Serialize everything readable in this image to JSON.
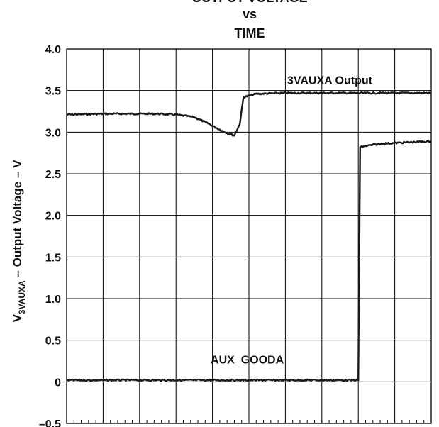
{
  "chart_data": {
    "type": "line",
    "title_lines": [
      "OUTPUT VOLTAGE",
      "vs",
      "TIME"
    ],
    "ylabel": {
      "prefix": "V",
      "subscript": "3VAUXA",
      "suffix": " – Output Voltage – V"
    },
    "xlabel": "",
    "ylim": [
      -0.5,
      4.0
    ],
    "xlim": [
      0,
      10
    ],
    "y_ticks": [
      "4.0",
      "3.5",
      "3.0",
      "2.5",
      "2.0",
      "1.5",
      "1.0",
      "0.5",
      "0",
      "–0.5"
    ],
    "y_tick_values": [
      4.0,
      3.5,
      3.0,
      2.5,
      2.0,
      1.5,
      1.0,
      0.5,
      0,
      -0.5
    ],
    "x_divisions": 10,
    "grid": true,
    "series": [
      {
        "name": "3VAUXA Output",
        "x": [
          0,
          1,
          1.5,
          2.0,
          2.5,
          3.0,
          3.5,
          3.9,
          4.2,
          4.45,
          4.6,
          4.75,
          4.85,
          5.2,
          6.0,
          7.0,
          8.0,
          9.0,
          10.0
        ],
        "y": [
          3.21,
          3.22,
          3.22,
          3.22,
          3.22,
          3.21,
          3.18,
          3.1,
          3.03,
          2.98,
          2.96,
          3.1,
          3.42,
          3.46,
          3.47,
          3.47,
          3.47,
          3.47,
          3.47
        ]
      },
      {
        "name": "AUX_GOODA",
        "x": [
          0,
          1,
          2,
          3,
          4,
          5,
          6,
          7,
          8,
          8.0,
          8.05,
          8.15,
          8.3,
          8.6,
          9.0,
          9.5,
          10.0
        ],
        "y": [
          0.02,
          0.02,
          0.02,
          0.02,
          0.02,
          0.02,
          0.02,
          0.02,
          0.02,
          0.02,
          2.82,
          2.83,
          2.84,
          2.86,
          2.87,
          2.88,
          2.89
        ]
      }
    ],
    "annotations": [
      {
        "text": "3VAUXA Output",
        "x": 6.05,
        "y": 3.58
      },
      {
        "text": "AUX_GOODA",
        "x": 3.95,
        "y": 0.22
      }
    ]
  }
}
